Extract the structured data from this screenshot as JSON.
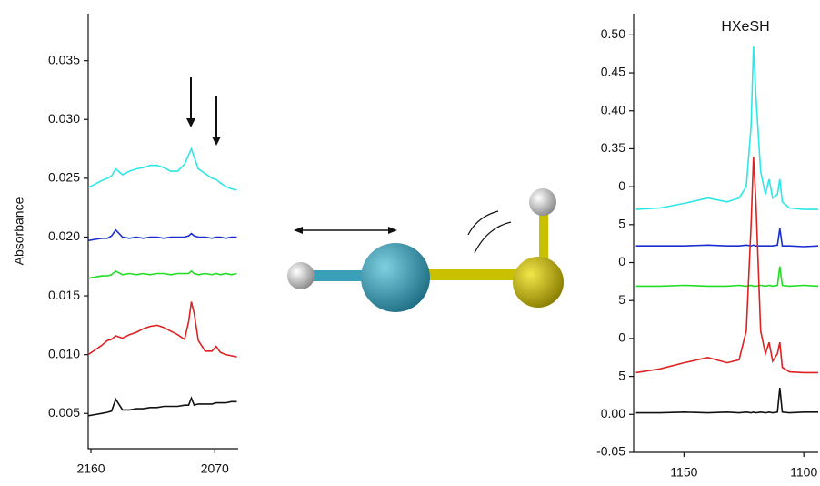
{
  "chart_data": [
    {
      "type": "line",
      "ylabel": "Absorbance",
      "x": [
        2162,
        2157,
        2152,
        2148,
        2145,
        2142,
        2137,
        2132,
        2127,
        2122,
        2117,
        2112,
        2107,
        2102,
        2097,
        2092,
        2089,
        2087,
        2085,
        2082,
        2077,
        2072,
        2069,
        2066,
        2062,
        2058,
        2054
      ],
      "xlim": [
        2162,
        2053
      ],
      "xticks": [
        2160,
        2070
      ],
      "ylim": [
        0.002,
        0.039
      ],
      "yticks": [
        0.005,
        {
          "value": 0.01,
          "label": "0.010"
        },
        0.015,
        {
          "value": 0.02,
          "label": "0.020"
        },
        0.025,
        {
          "value": 0.03,
          "label": "0.030"
        },
        0.035
      ],
      "series": [
        {
          "color": "#2ee6e6",
          "values": [
            0.0242,
            0.0245,
            0.0248,
            0.025,
            0.0252,
            0.0258,
            0.0253,
            0.0256,
            0.0258,
            0.0259,
            0.0261,
            0.0261,
            0.0259,
            0.0256,
            0.0256,
            0.0262,
            0.027,
            0.0275,
            0.0268,
            0.0258,
            0.0254,
            0.025,
            0.0249,
            0.0246,
            0.0243,
            0.0241,
            0.024
          ]
        },
        {
          "color": "#1a2ed0",
          "values": [
            0.0197,
            0.0198,
            0.0199,
            0.0199,
            0.0201,
            0.0206,
            0.02,
            0.0199,
            0.02,
            0.0199,
            0.02,
            0.02,
            0.0199,
            0.02,
            0.02,
            0.02,
            0.0201,
            0.0203,
            0.0201,
            0.02,
            0.02,
            0.0199,
            0.02,
            0.02,
            0.0199,
            0.02,
            0.02
          ]
        },
        {
          "color": "#22dd22",
          "values": [
            0.0165,
            0.0166,
            0.0167,
            0.0167,
            0.0168,
            0.0171,
            0.0168,
            0.0169,
            0.0168,
            0.0169,
            0.0168,
            0.0169,
            0.0169,
            0.0168,
            0.0169,
            0.0169,
            0.0169,
            0.0171,
            0.0169,
            0.0168,
            0.0169,
            0.0168,
            0.0169,
            0.0168,
            0.0169,
            0.0168,
            0.0169
          ]
        },
        {
          "color": "#dd2222",
          "values": [
            0.01,
            0.0104,
            0.0108,
            0.0112,
            0.0113,
            0.0116,
            0.0114,
            0.0117,
            0.0119,
            0.0122,
            0.0124,
            0.0125,
            0.0123,
            0.012,
            0.0117,
            0.0113,
            0.0128,
            0.0145,
            0.0135,
            0.0112,
            0.0103,
            0.0103,
            0.0107,
            0.0102,
            0.01,
            0.0099,
            0.0098
          ]
        },
        {
          "color": "#111111",
          "values": [
            0.0048,
            0.0049,
            0.005,
            0.0051,
            0.0052,
            0.0062,
            0.0053,
            0.0053,
            0.0054,
            0.0054,
            0.0055,
            0.0055,
            0.0056,
            0.0056,
            0.0056,
            0.0057,
            0.0057,
            0.0063,
            0.0057,
            0.0058,
            0.0058,
            0.0058,
            0.0059,
            0.0059,
            0.0059,
            0.006,
            0.006
          ]
        }
      ]
    },
    {
      "type": "line",
      "title": "HXeSH",
      "x": [
        1170,
        1160,
        1150,
        1140,
        1132,
        1127,
        1124,
        1122,
        1121,
        1120,
        1118,
        1116,
        1114.5,
        1113,
        1111,
        1110,
        1109,
        1106,
        1100,
        1094
      ],
      "xlim": [
        1171,
        1094
      ],
      "xticks": [
        1150,
        1100
      ],
      "ylim": [
        -0.05,
        0.528
      ],
      "yticks": [
        -0.05,
        {
          "value": 0,
          "label": "0.00"
        },
        {
          "value": 0.05,
          "label": "5"
        },
        {
          "value": 0.1,
          "label": "0"
        },
        {
          "value": 0.15,
          "label": "5"
        },
        {
          "value": 0.2,
          "label": "0"
        },
        {
          "value": 0.25,
          "label": "5"
        },
        {
          "value": 0.3,
          "label": "0"
        },
        0.35,
        {
          "value": 0.4,
          "label": "0.40"
        },
        0.45,
        {
          "value": 0.5,
          "label": "0.50"
        }
      ],
      "series": [
        {
          "color": "#2ee6e6",
          "values": [
            0.27,
            0.272,
            0.278,
            0.285,
            0.28,
            0.285,
            0.3,
            0.38,
            0.485,
            0.42,
            0.32,
            0.29,
            0.31,
            0.285,
            0.29,
            0.31,
            0.28,
            0.272,
            0.27,
            0.27
          ]
        },
        {
          "color": "#1a2ed0",
          "values": [
            0.222,
            0.222,
            0.222,
            0.223,
            0.222,
            0.222,
            0.223,
            0.222,
            0.223,
            0.222,
            0.222,
            0.222,
            0.222,
            0.222,
            0.223,
            0.245,
            0.222,
            0.222,
            0.221,
            0.222
          ]
        },
        {
          "color": "#22dd22",
          "values": [
            0.169,
            0.169,
            0.17,
            0.169,
            0.169,
            0.17,
            0.169,
            0.17,
            0.169,
            0.169,
            0.17,
            0.169,
            0.17,
            0.169,
            0.17,
            0.195,
            0.17,
            0.169,
            0.17,
            0.169
          ]
        },
        {
          "color": "#dd2222",
          "values": [
            0.055,
            0.06,
            0.068,
            0.075,
            0.068,
            0.072,
            0.11,
            0.25,
            0.339,
            0.28,
            0.11,
            0.08,
            0.095,
            0.07,
            0.08,
            0.095,
            0.062,
            0.056,
            0.055,
            0.055
          ]
        },
        {
          "color": "#111111",
          "values": [
            0.002,
            0.002,
            0.003,
            0.002,
            0.003,
            0.002,
            0.003,
            0.002,
            0.003,
            0.002,
            0.003,
            0.002,
            0.003,
            0.002,
            0.003,
            0.035,
            0.003,
            0.002,
            0.003,
            0.003
          ]
        }
      ]
    }
  ]
}
